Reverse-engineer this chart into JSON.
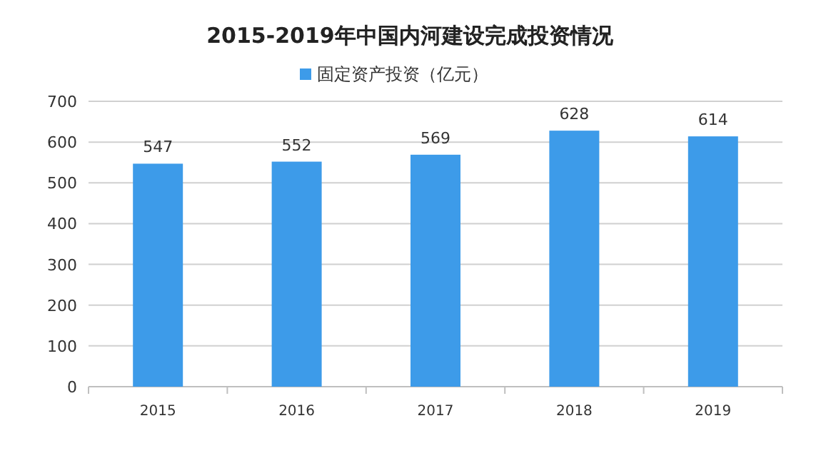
{
  "chart_data": {
    "type": "bar",
    "title": "2015-2019年中国内河建设完成投资情况",
    "categories": [
      "2015",
      "2016",
      "2017",
      "2018",
      "2019"
    ],
    "series": [
      {
        "name": "固定资产投资（亿元）",
        "color": "#3d9be9",
        "values": [
          547,
          552,
          569,
          628,
          614
        ]
      }
    ],
    "ylim": [
      0,
      700
    ],
    "yticks": [
      0,
      100,
      200,
      300,
      400,
      500,
      600,
      700
    ],
    "grid": "y",
    "legend": "top",
    "data_labels": true
  }
}
